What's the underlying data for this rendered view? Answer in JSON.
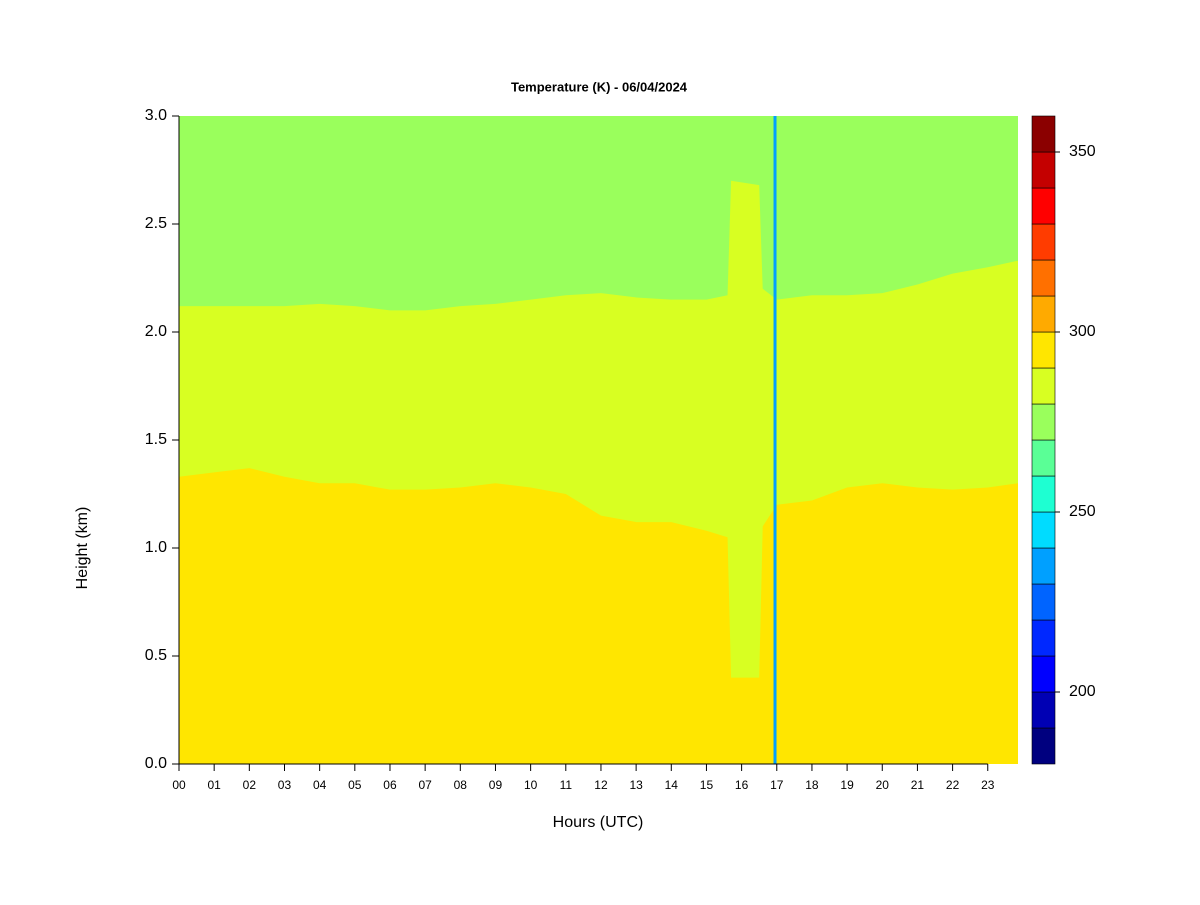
{
  "chart_data": {
    "type": "contour",
    "title": "Temperature (K) - 06/04/2024",
    "xlabel": "Hours (UTC)",
    "ylabel": "Height (km)",
    "xlim": [
      0,
      23.86
    ],
    "ylim": [
      0,
      3
    ],
    "xticks": [
      {
        "value": 0,
        "label": "00"
      },
      {
        "value": 1,
        "label": "01"
      },
      {
        "value": 2,
        "label": "02"
      },
      {
        "value": 3,
        "label": "03"
      },
      {
        "value": 4,
        "label": "04"
      },
      {
        "value": 5,
        "label": "05"
      },
      {
        "value": 6,
        "label": "06"
      },
      {
        "value": 7,
        "label": "07"
      },
      {
        "value": 8,
        "label": "08"
      },
      {
        "value": 9,
        "label": "09"
      },
      {
        "value": 10,
        "label": "10"
      },
      {
        "value": 11,
        "label": "11"
      },
      {
        "value": 12,
        "label": "12"
      },
      {
        "value": 13,
        "label": "13"
      },
      {
        "value": 14,
        "label": "14"
      },
      {
        "value": 15,
        "label": "15"
      },
      {
        "value": 16,
        "label": "16"
      },
      {
        "value": 17,
        "label": "17"
      },
      {
        "value": 18,
        "label": "18"
      },
      {
        "value": 19,
        "label": "19"
      },
      {
        "value": 20,
        "label": "20"
      },
      {
        "value": 21,
        "label": "21"
      },
      {
        "value": 22,
        "label": "22"
      },
      {
        "value": 23,
        "label": "23"
      }
    ],
    "yticks": [
      {
        "value": 0,
        "label": "0.0"
      },
      {
        "value": 0.5,
        "label": "0.5"
      },
      {
        "value": 1,
        "label": "1.0"
      },
      {
        "value": 1.5,
        "label": "1.5"
      },
      {
        "value": 2,
        "label": "2.0"
      },
      {
        "value": 2.5,
        "label": "2.5"
      },
      {
        "value": 3,
        "label": "3.0"
      }
    ],
    "levels": [
      180,
      190,
      200,
      210,
      220,
      230,
      240,
      250,
      260,
      270,
      280,
      290,
      300,
      310,
      320,
      330,
      340,
      350,
      360
    ],
    "colors": [
      "#00007f",
      "#0000b4",
      "#0000ff",
      "#0028ff",
      "#0064ff",
      "#00a0ff",
      "#00dcff",
      "#1effd2",
      "#5aff96",
      "#9aff5c",
      "#d8ff22",
      "#ffe600",
      "#ffaa00",
      "#ff7000",
      "#ff3c00",
      "#ff0000",
      "#c40000",
      "#8b0000"
    ],
    "colorbar_ticks": [
      200,
      250,
      300,
      350
    ],
    "contours": [
      {
        "level": 290,
        "x": [
          0,
          1,
          2,
          3,
          4,
          5,
          6,
          7,
          8,
          9,
          10,
          11,
          12,
          13,
          14,
          15,
          15.6,
          15.7,
          16.5,
          16.6,
          17,
          18,
          19,
          20,
          21,
          22,
          23,
          23.86
        ],
        "heights": [
          1.33,
          1.35,
          1.37,
          1.33,
          1.3,
          1.3,
          1.27,
          1.27,
          1.28,
          1.3,
          1.28,
          1.25,
          1.15,
          1.12,
          1.12,
          1.08,
          1.05,
          0.4,
          0.4,
          1.1,
          1.2,
          1.22,
          1.28,
          1.3,
          1.28,
          1.27,
          1.28,
          1.3
        ]
      },
      {
        "level": 280,
        "x": [
          0,
          1,
          2,
          3,
          4,
          5,
          6,
          7,
          8,
          9,
          10,
          11,
          12,
          13,
          14,
          15,
          15.6,
          15.7,
          16.5,
          16.6,
          17,
          18,
          19,
          20,
          21,
          22,
          23,
          23.86
        ],
        "heights": [
          2.12,
          2.12,
          2.12,
          2.12,
          2.13,
          2.12,
          2.1,
          2.1,
          2.12,
          2.13,
          2.15,
          2.17,
          2.18,
          2.16,
          2.15,
          2.15,
          2.17,
          2.7,
          2.68,
          2.2,
          2.15,
          2.17,
          2.17,
          2.18,
          2.22,
          2.27,
          2.3,
          2.33
        ]
      }
    ],
    "streak": {
      "x": 16.95,
      "value": 235
    }
  }
}
